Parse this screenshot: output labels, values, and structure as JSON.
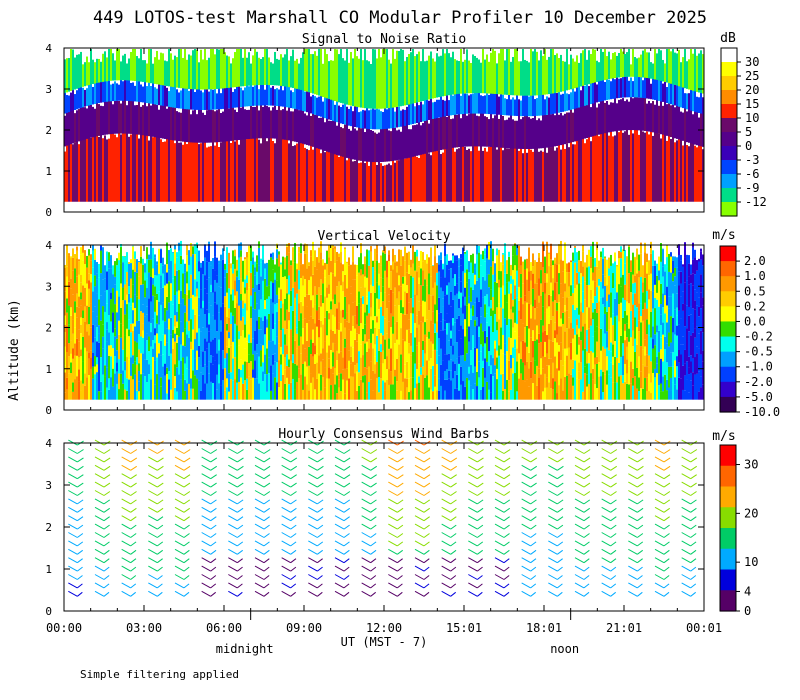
{
  "title": "449 LOTOS-test Marshall CO Modular Profiler 10 December 2025",
  "footer_note": "Simple filtering applied",
  "ylabel": "Altitude (km)",
  "xlabel": "UT  (MST - 7)",
  "day_markers": [
    {
      "label": "midnight",
      "x": 7.0
    },
    {
      "label": "noon",
      "x": 19.0
    }
  ],
  "x_ticks": [
    "00:00",
    "03:00",
    "06:00",
    "09:00",
    "12:00",
    "15:01",
    "18:01",
    "21:01",
    "00:01"
  ],
  "x_tick_values": [
    0,
    3,
    6,
    9,
    12,
    15,
    18,
    21,
    24
  ],
  "x_range": [
    0,
    24
  ],
  "chart_data": [
    {
      "type": "heatmap",
      "title": "Signal to Noise Ratio",
      "unit": "dB",
      "xlabel": "UT (MST - 7)",
      "ylabel": "Altitude (km)",
      "ylim": [
        0,
        4
      ],
      "y_ticks": [
        "0",
        "1",
        "2",
        "3",
        "4"
      ],
      "colorbar": {
        "labels": [
          "30",
          "25",
          "20",
          "15",
          "10",
          "5",
          "0",
          "-3",
          "-6",
          "-9",
          "-12"
        ],
        "colors": [
          "#ffffff",
          "#ffff00",
          "#ffcc00",
          "#ff8c00",
          "#ff2200",
          "#6a0a6a",
          "#55008a",
          "#3a00b8",
          "#0044ff",
          "#00a0ff",
          "#00dd88",
          "#88ff00"
        ]
      },
      "profile_bands_km": [
        {
          "from": 0.25,
          "to": 1.6,
          "value_db": 10
        },
        {
          "from": 1.6,
          "to": 2.4,
          "value_db": 3
        },
        {
          "from": 2.4,
          "to": 2.9,
          "value_db": -5
        },
        {
          "from": 2.9,
          "to": 4.1,
          "value_db": -12
        }
      ]
    },
    {
      "type": "heatmap",
      "title": "Vertical Velocity",
      "unit": "m/s",
      "ylim": [
        0,
        4
      ],
      "y_ticks": [
        "0",
        "1",
        "2",
        "3",
        "4"
      ],
      "colorbar": {
        "labels": [
          "2.0",
          "1.0",
          "0.5",
          "0.2",
          "0.0",
          "-0.2",
          "-0.5",
          "-1.0",
          "-2.0",
          "-5.0",
          "-10.0"
        ],
        "colors": [
          "#ff0000",
          "#ff6600",
          "#ff9900",
          "#ffcc00",
          "#ffff00",
          "#33dd00",
          "#00ffee",
          "#00a0ff",
          "#0040ff",
          "#3300cc",
          "#330055"
        ]
      },
      "typical_values_by_hour": [
        0.5,
        -0.5,
        -0.2,
        -0.5,
        -0.2,
        -1.0,
        0.0,
        -0.5,
        0.2,
        0.5,
        0.5,
        0.2,
        0.5,
        0.2,
        -1.0,
        -0.5,
        0.0,
        0.5,
        0.5,
        0.2,
        0.0,
        0.2,
        -0.5,
        -2.0
      ]
    },
    {
      "type": "wind_barbs",
      "title": "Hourly Consensus Wind Barbs",
      "unit": "m/s",
      "ylim": [
        0,
        4
      ],
      "y_ticks": [
        "0",
        "1",
        "2",
        "3",
        "4"
      ],
      "colorbar": {
        "labels": [
          "30",
          "20",
          "10",
          "4",
          "0"
        ],
        "label_values": [
          30,
          20,
          10,
          4,
          0
        ],
        "max": 34,
        "colors": [
          "#ff0000",
          "#ff6600",
          "#ffaa00",
          "#88dd00",
          "#00cc66",
          "#00aaff",
          "#0000dd",
          "#550066"
        ]
      },
      "hours": [
        0.5,
        1.5,
        2.5,
        3.5,
        4.5,
        5.5,
        6.5,
        7.5,
        8.5,
        9.5,
        10.5,
        11.5,
        12.5,
        13.5,
        14.5,
        15.5,
        16.5,
        17.5,
        18.5,
        19.5,
        20.5,
        21.5,
        22.5,
        23.5
      ],
      "speed_by_hour_ms": [
        12,
        16,
        18,
        17,
        18,
        12,
        12,
        12,
        12,
        12,
        12,
        14,
        20,
        20,
        18,
        16,
        16,
        14,
        14,
        16,
        16,
        16,
        18,
        16
      ]
    }
  ]
}
